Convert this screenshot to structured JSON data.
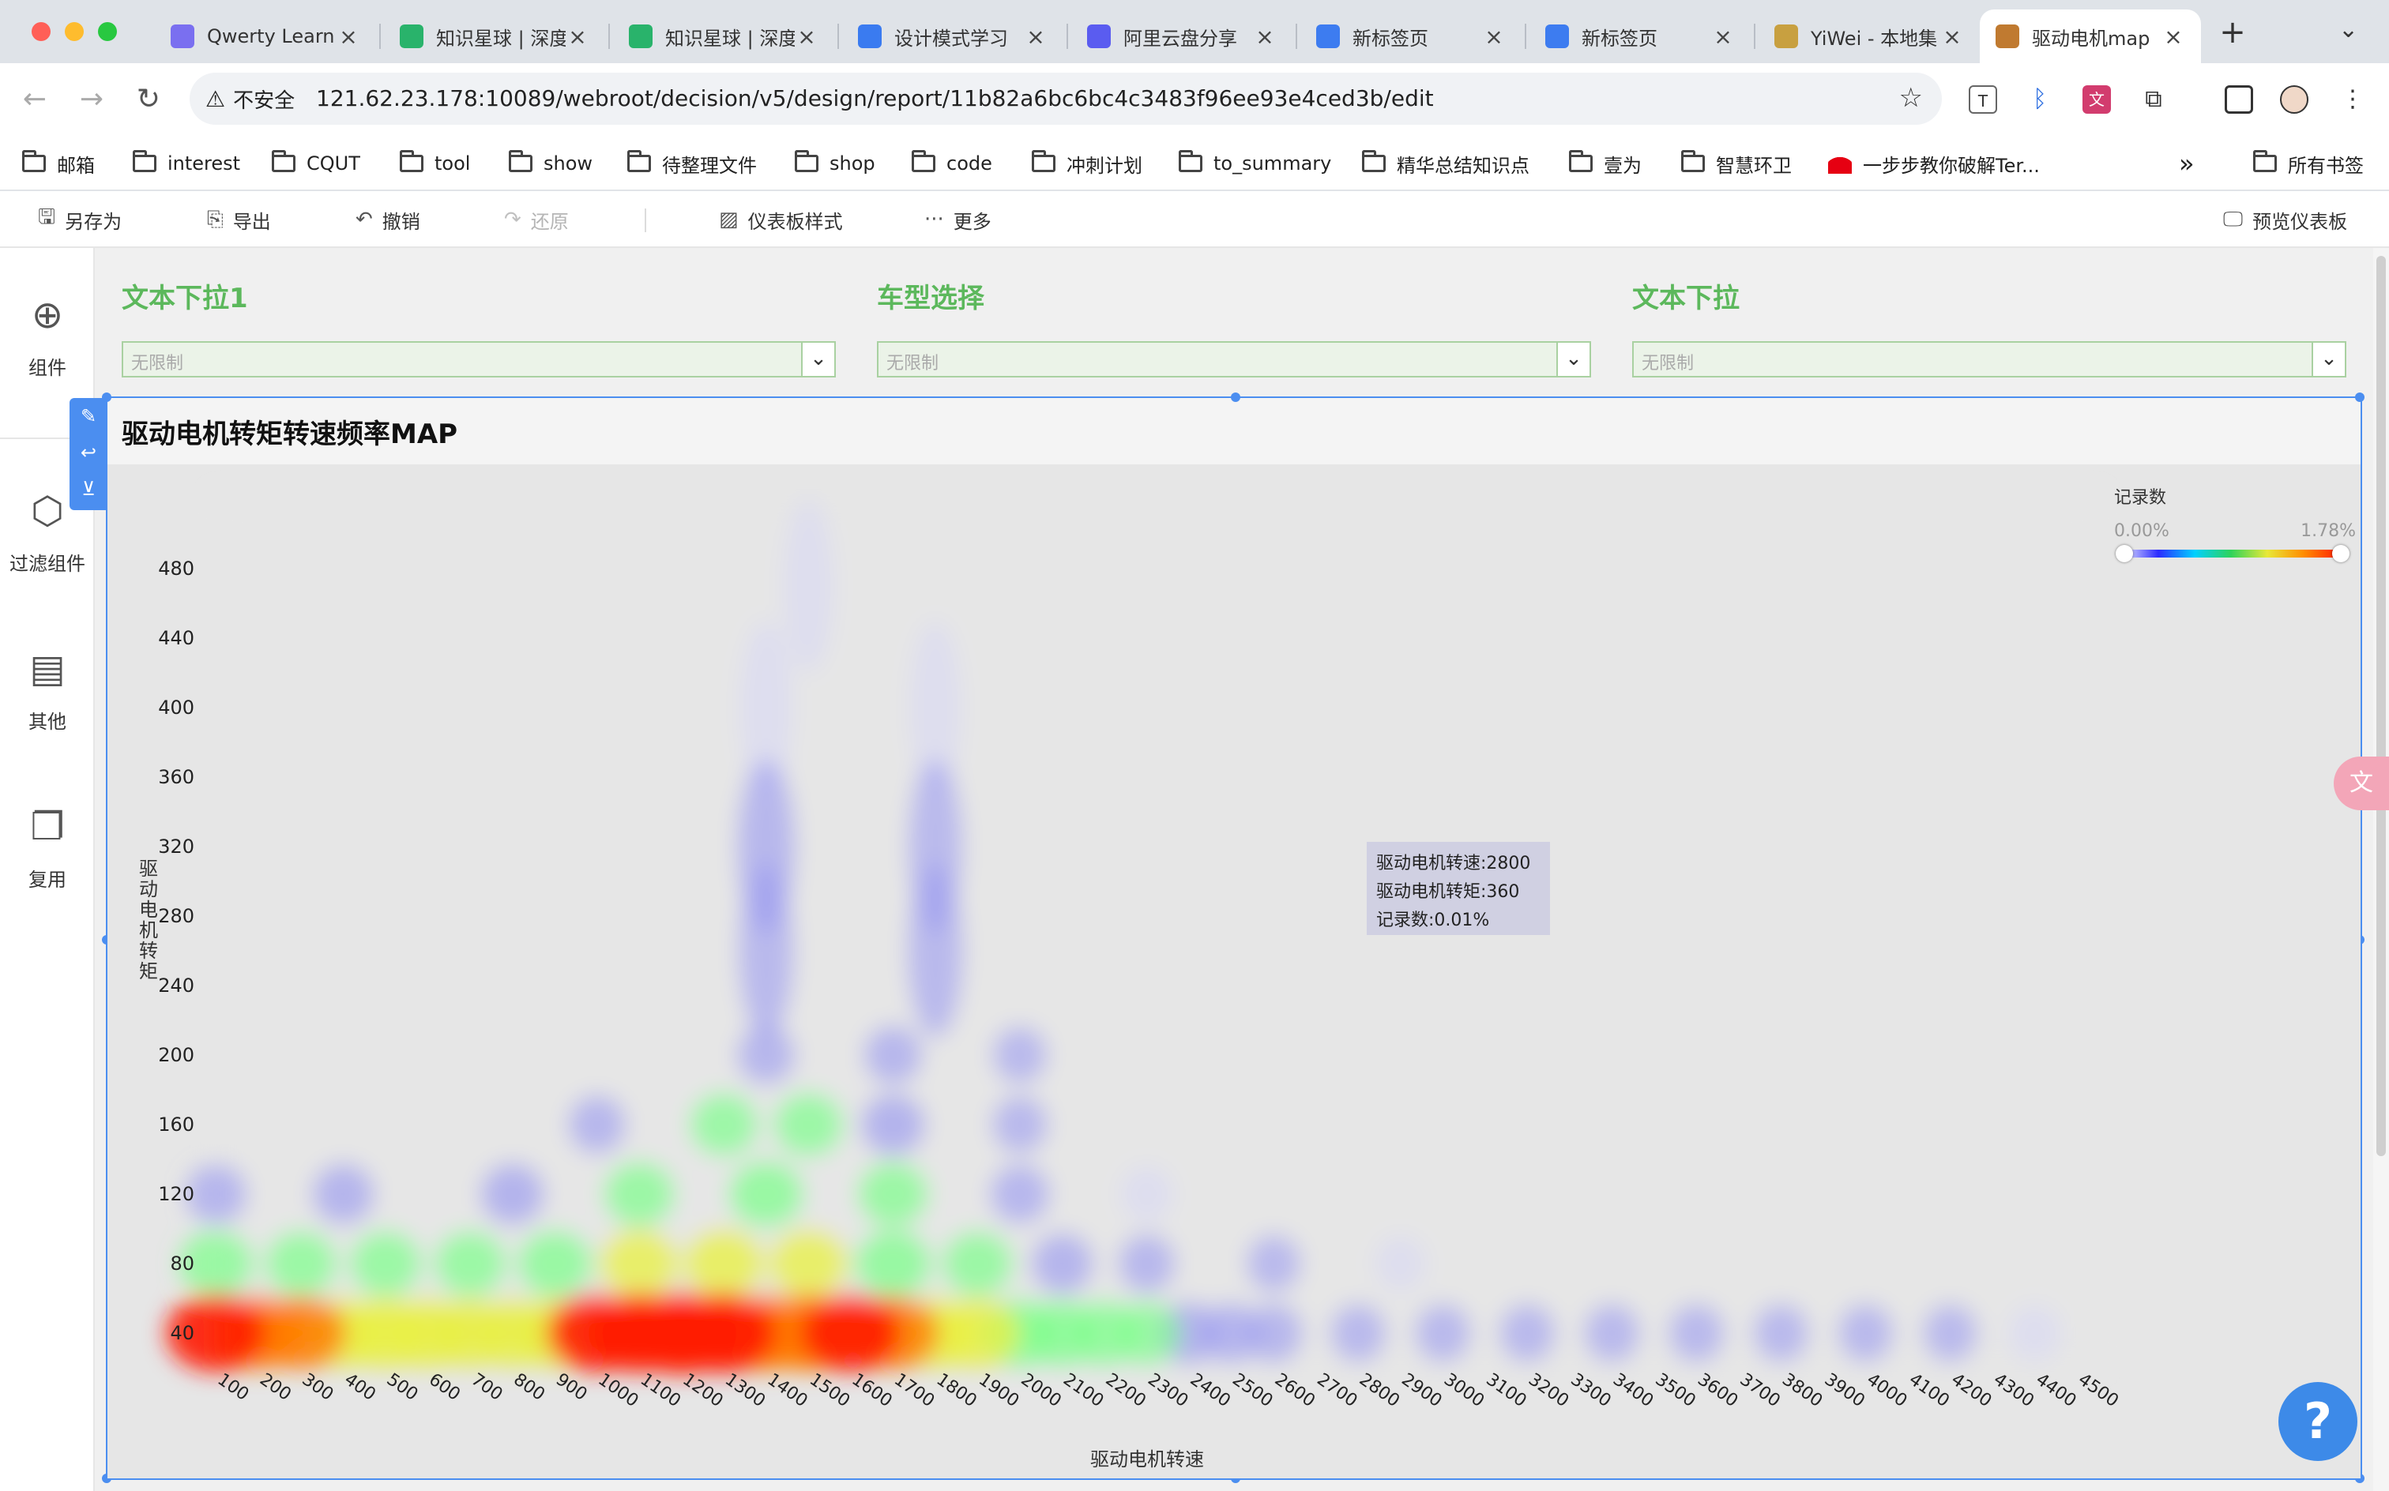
{
  "browser": {
    "tabs": [
      {
        "title": "Qwerty Learn",
        "favicon_color": "#7a6ff0"
      },
      {
        "title": "知识星球 | 深度",
        "favicon_color": "#29b36b"
      },
      {
        "title": "知识星球 | 深度",
        "favicon_color": "#29b36b"
      },
      {
        "title": "设计模式学习",
        "favicon_color": "#3a7bf0"
      },
      {
        "title": "阿里云盘分享",
        "favicon_color": "#5a5cf0"
      },
      {
        "title": "新标签页",
        "favicon_color": "#3d7cf0"
      },
      {
        "title": "新标签页",
        "favicon_color": "#3d7cf0"
      },
      {
        "title": "YiWei - 本地集",
        "favicon_color": "#c8a040"
      },
      {
        "title": "驱动电机map",
        "favicon_color": "#c07a30"
      }
    ],
    "active_tab_index": 8,
    "new_tab_symbol": "+",
    "security_label": "不安全",
    "url": "121.62.23.178:10089/webroot/decision/v5/design/report/11b82a6bc6bc4c3483f96ee93e4ced3b/edit",
    "bookmarks": [
      {
        "label": "邮箱",
        "icon": "folder-icon"
      },
      {
        "label": "interest",
        "icon": "folder-icon"
      },
      {
        "label": "CQUT",
        "icon": "folder-icon"
      },
      {
        "label": "tool",
        "icon": "folder-icon"
      },
      {
        "label": "show",
        "icon": "folder-icon"
      },
      {
        "label": "待整理文件",
        "icon": "folder-icon"
      },
      {
        "label": "shop",
        "icon": "folder-icon"
      },
      {
        "label": "code",
        "icon": "folder-icon"
      },
      {
        "label": "冲刺计划",
        "icon": "folder-icon"
      },
      {
        "label": "to_summary",
        "icon": "folder-icon"
      },
      {
        "label": "精华总结知识点",
        "icon": "folder-icon"
      },
      {
        "label": "壹为",
        "icon": "folder-icon"
      },
      {
        "label": "智慧环卫",
        "icon": "folder-icon"
      },
      {
        "label": "一步步教你破解Ter...",
        "icon": "huawei-icon"
      }
    ],
    "bookmarks_more": "»",
    "all_bookmarks": "所有书签"
  },
  "app_toolbar": {
    "save_as": "另存为",
    "export": "导出",
    "undo": "撤销",
    "redo": "还原",
    "dashboard_style": "仪表板样式",
    "more": "更多",
    "preview": "预览仪表板"
  },
  "left_sidebar": {
    "components": "组件",
    "filter_components": "过滤组件",
    "other": "其他",
    "reuse": "复用"
  },
  "filters": [
    {
      "title": "文本下拉1",
      "placeholder": "无限制"
    },
    {
      "title": "车型选择",
      "placeholder": "无限制"
    },
    {
      "title": "文本下拉",
      "placeholder": "无限制"
    }
  ],
  "widget": {
    "title": "驱动电机转矩转速频率MAP"
  },
  "chart_data": {
    "type": "heatmap",
    "title": "驱动电机转矩转速频率MAP",
    "xlabel": "驱动电机转速",
    "ylabel": "驱动电机转矩",
    "x_ticks": [
      100,
      200,
      300,
      400,
      500,
      600,
      700,
      800,
      900,
      1000,
      1100,
      1200,
      1300,
      1400,
      1500,
      1600,
      1700,
      1800,
      1900,
      2000,
      2100,
      2200,
      2300,
      2400,
      2500,
      2600,
      2700,
      2800,
      2900,
      3000,
      3100,
      3200,
      3300,
      3400,
      3500,
      3600,
      3700,
      3800,
      3900,
      4000,
      4100,
      4200,
      4300,
      4400,
      4500
    ],
    "y_ticks": [
      40,
      80,
      120,
      160,
      200,
      240,
      280,
      320,
      360,
      400,
      440,
      480
    ],
    "xlim": [
      100,
      4500
    ],
    "ylim": [
      40,
      480
    ],
    "legend": {
      "title": "记录数",
      "min": "0.00%",
      "max": "1.78%",
      "placement": "top-right"
    },
    "colors": [
      "#d8d8f4",
      "#9a9af0",
      "#7cff8a",
      "#e8f040",
      "#ff7a00",
      "#ff1a00"
    ],
    "intensity_points": [
      {
        "x": 100,
        "y": 40,
        "v": 0.85
      },
      {
        "x": 200,
        "y": 40,
        "v": 0.72
      },
      {
        "x": 300,
        "y": 40,
        "v": 0.68
      },
      {
        "x": 400,
        "y": 40,
        "v": 0.6
      },
      {
        "x": 500,
        "y": 40,
        "v": 0.62
      },
      {
        "x": 600,
        "y": 40,
        "v": 0.6
      },
      {
        "x": 700,
        "y": 40,
        "v": 0.55
      },
      {
        "x": 800,
        "y": 40,
        "v": 0.55
      },
      {
        "x": 900,
        "y": 40,
        "v": 0.6
      },
      {
        "x": 1000,
        "y": 40,
        "v": 0.85
      },
      {
        "x": 1100,
        "y": 40,
        "v": 0.88
      },
      {
        "x": 1200,
        "y": 40,
        "v": 1.0
      },
      {
        "x": 1300,
        "y": 40,
        "v": 0.92
      },
      {
        "x": 1400,
        "y": 40,
        "v": 0.8
      },
      {
        "x": 1500,
        "y": 40,
        "v": 0.82
      },
      {
        "x": 1600,
        "y": 40,
        "v": 0.85
      },
      {
        "x": 1700,
        "y": 40,
        "v": 0.7
      },
      {
        "x": 1800,
        "y": 40,
        "v": 0.62
      },
      {
        "x": 1900,
        "y": 40,
        "v": 0.58
      },
      {
        "x": 2000,
        "y": 40,
        "v": 0.48
      },
      {
        "x": 2100,
        "y": 40,
        "v": 0.42
      },
      {
        "x": 2200,
        "y": 40,
        "v": 0.38
      },
      {
        "x": 2300,
        "y": 40,
        "v": 0.32
      },
      {
        "x": 2400,
        "y": 40,
        "v": 0.26
      },
      {
        "x": 2500,
        "y": 40,
        "v": 0.2
      },
      {
        "x": 2600,
        "y": 40,
        "v": 0.16
      },
      {
        "x": 2800,
        "y": 40,
        "v": 0.12
      },
      {
        "x": 3000,
        "y": 40,
        "v": 0.12
      },
      {
        "x": 3200,
        "y": 40,
        "v": 0.12
      },
      {
        "x": 3400,
        "y": 40,
        "v": 0.12
      },
      {
        "x": 3600,
        "y": 40,
        "v": 0.12
      },
      {
        "x": 3800,
        "y": 40,
        "v": 0.11
      },
      {
        "x": 4000,
        "y": 40,
        "v": 0.11
      },
      {
        "x": 4200,
        "y": 40,
        "v": 0.1
      },
      {
        "x": 4400,
        "y": 40,
        "v": 0.09
      },
      {
        "x": 100,
        "y": 80,
        "v": 0.42
      },
      {
        "x": 300,
        "y": 80,
        "v": 0.38
      },
      {
        "x": 500,
        "y": 80,
        "v": 0.38
      },
      {
        "x": 700,
        "y": 80,
        "v": 0.38
      },
      {
        "x": 900,
        "y": 80,
        "v": 0.42
      },
      {
        "x": 1100,
        "y": 80,
        "v": 0.5
      },
      {
        "x": 1300,
        "y": 80,
        "v": 0.52
      },
      {
        "x": 1500,
        "y": 80,
        "v": 0.5
      },
      {
        "x": 1700,
        "y": 80,
        "v": 0.45
      },
      {
        "x": 1900,
        "y": 80,
        "v": 0.36
      },
      {
        "x": 2100,
        "y": 80,
        "v": 0.22
      },
      {
        "x": 2300,
        "y": 80,
        "v": 0.14
      },
      {
        "x": 2600,
        "y": 80,
        "v": 0.1
      },
      {
        "x": 2900,
        "y": 80,
        "v": 0.07
      },
      {
        "x": 100,
        "y": 120,
        "v": 0.2
      },
      {
        "x": 400,
        "y": 120,
        "v": 0.22
      },
      {
        "x": 800,
        "y": 120,
        "v": 0.25
      },
      {
        "x": 1100,
        "y": 120,
        "v": 0.36
      },
      {
        "x": 1400,
        "y": 120,
        "v": 0.42
      },
      {
        "x": 1700,
        "y": 120,
        "v": 0.36
      },
      {
        "x": 2000,
        "y": 120,
        "v": 0.18
      },
      {
        "x": 2300,
        "y": 120,
        "v": 0.09
      },
      {
        "x": 1300,
        "y": 160,
        "v": 0.32
      },
      {
        "x": 1500,
        "y": 160,
        "v": 0.34
      },
      {
        "x": 1700,
        "y": 160,
        "v": 0.26
      },
      {
        "x": 1000,
        "y": 160,
        "v": 0.15
      },
      {
        "x": 2000,
        "y": 160,
        "v": 0.12
      },
      {
        "x": 1400,
        "y": 200,
        "v": 0.16
      },
      {
        "x": 1700,
        "y": 200,
        "v": 0.16
      },
      {
        "x": 2000,
        "y": 200,
        "v": 0.1
      },
      {
        "x": 1400,
        "y": 260,
        "v": 0.12
      },
      {
        "x": 1800,
        "y": 260,
        "v": 0.12
      },
      {
        "x": 1400,
        "y": 320,
        "v": 0.16
      },
      {
        "x": 1800,
        "y": 320,
        "v": 0.1
      },
      {
        "x": 1400,
        "y": 400,
        "v": 0.08
      },
      {
        "x": 1800,
        "y": 400,
        "v": 0.07
      },
      {
        "x": 1500,
        "y": 470,
        "v": 0.05
      }
    ]
  },
  "tooltip": {
    "line1": "驱动电机转速:2800",
    "line2": "驱动电机转矩:360",
    "line3": "记录数:0.01%"
  }
}
